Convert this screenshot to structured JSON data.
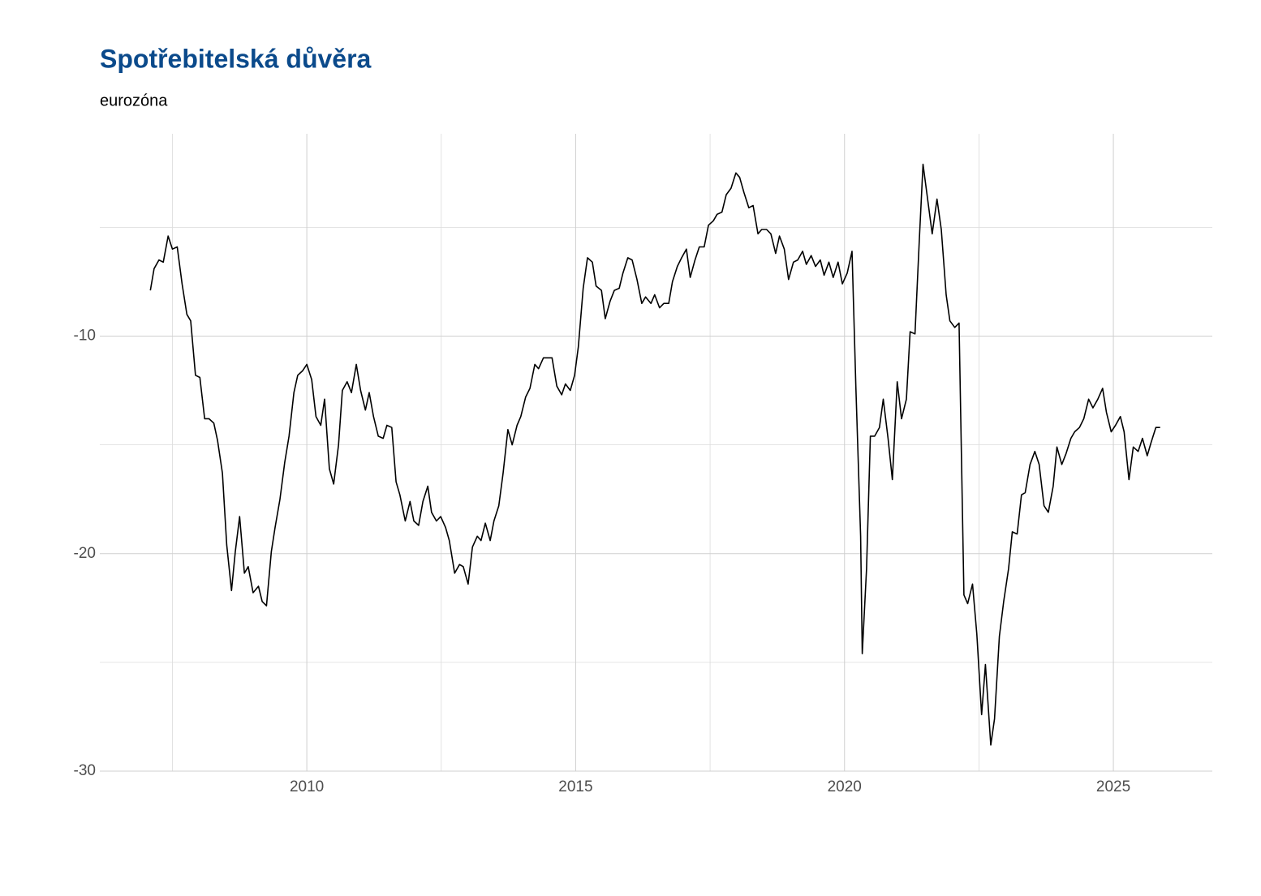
{
  "chart_data": {
    "type": "line",
    "title": "Spotřebitelská důvěra",
    "subtitle": "eurozóna",
    "x": [
      2007.09,
      2007.16,
      2007.25,
      2007.33,
      2007.42,
      2007.5,
      2007.59,
      2007.68,
      2007.77,
      2007.84,
      2007.93,
      2008.01,
      2008.1,
      2008.18,
      2008.27,
      2008.34,
      2008.43,
      2008.51,
      2008.6,
      2008.67,
      2008.75,
      2008.84,
      2008.91,
      2009.0,
      2009.1,
      2009.17,
      2009.25,
      2009.34,
      2009.41,
      2009.5,
      2009.59,
      2009.67,
      2009.76,
      2009.83,
      2009.92,
      2010.0,
      2010.09,
      2010.17,
      2010.26,
      2010.33,
      2010.42,
      2010.5,
      2010.59,
      2010.66,
      2010.75,
      2010.83,
      2010.92,
      2011.0,
      2011.09,
      2011.16,
      2011.24,
      2011.33,
      2011.42,
      2011.49,
      2011.58,
      2011.66,
      2011.73,
      2011.83,
      2011.92,
      2011.99,
      2012.08,
      2012.16,
      2012.25,
      2012.32,
      2012.41,
      2012.49,
      2012.58,
      2012.65,
      2012.75,
      2012.84,
      2012.91,
      2013.0,
      2013.08,
      2013.17,
      2013.24,
      2013.32,
      2013.41,
      2013.48,
      2013.57,
      2013.65,
      2013.74,
      2013.82,
      2013.91,
      2013.98,
      2014.07,
      2014.15,
      2014.24,
      2014.31,
      2014.4,
      2014.48,
      2014.56,
      2014.65,
      2014.74,
      2014.81,
      2014.9,
      2014.98,
      2015.05,
      2015.14,
      2015.22,
      2015.31,
      2015.38,
      2015.48,
      2015.55,
      2015.64,
      2015.72,
      2015.81,
      2015.88,
      2015.97,
      2016.05,
      2016.14,
      2016.23,
      2016.3,
      2016.4,
      2016.47,
      2016.56,
      2016.64,
      2016.73,
      2016.8,
      2016.89,
      2016.97,
      2017.06,
      2017.13,
      2017.22,
      2017.3,
      2017.39,
      2017.47,
      2017.56,
      2017.63,
      2017.72,
      2017.8,
      2017.89,
      2017.98,
      2018.05,
      2018.13,
      2018.22,
      2018.3,
      2018.39,
      2018.46,
      2018.55,
      2018.63,
      2018.72,
      2018.79,
      2018.88,
      2018.96,
      2019.05,
      2019.13,
      2019.22,
      2019.29,
      2019.38,
      2019.46,
      2019.55,
      2019.62,
      2019.71,
      2019.79,
      2019.88,
      2019.96,
      2020.05,
      2020.14,
      2020.21,
      2020.3,
      2020.33,
      2020.41,
      2020.48,
      2020.56,
      2020.65,
      2020.72,
      2020.81,
      2020.89,
      2020.98,
      2021.06,
      2021.15,
      2021.22,
      2021.31,
      2021.39,
      2021.46,
      2021.55,
      2021.63,
      2021.72,
      2021.8,
      2021.89,
      2021.96,
      2022.05,
      2022.13,
      2022.22,
      2022.29,
      2022.38,
      2022.46,
      2022.55,
      2022.62,
      2022.72,
      2022.79,
      2022.88,
      2022.96,
      2023.05,
      2023.12,
      2023.21,
      2023.29,
      2023.36,
      2023.45,
      2023.54,
      2023.62,
      2023.71,
      2023.79,
      2023.88,
      2023.95,
      2024.04,
      2024.12,
      2024.21,
      2024.28,
      2024.37,
      2024.45,
      2024.54,
      2024.62,
      2024.71,
      2024.8,
      2024.87,
      2024.96,
      2025.04,
      2025.13,
      2025.2,
      2025.29,
      2025.37,
      2025.46,
      2025.54,
      2025.63,
      2025.7,
      2025.79,
      2025.87
    ],
    "values": [
      -7.9,
      -6.9,
      -6.5,
      -6.6,
      -5.4,
      -6.0,
      -5.9,
      -7.6,
      -9.0,
      -9.3,
      -11.8,
      -11.9,
      -13.8,
      -13.8,
      -14.0,
      -14.8,
      -16.3,
      -19.6,
      -21.7,
      -19.9,
      -18.3,
      -20.9,
      -20.6,
      -21.8,
      -21.5,
      -22.2,
      -22.4,
      -19.9,
      -18.8,
      -17.5,
      -15.8,
      -14.6,
      -12.6,
      -11.8,
      -11.6,
      -11.3,
      -12.0,
      -13.7,
      -14.1,
      -12.9,
      -16.1,
      -16.8,
      -15.0,
      -12.5,
      -12.1,
      -12.6,
      -11.3,
      -12.5,
      -13.4,
      -12.6,
      -13.7,
      -14.6,
      -14.7,
      -14.1,
      -14.2,
      -16.7,
      -17.3,
      -18.5,
      -17.6,
      -18.5,
      -18.7,
      -17.6,
      -16.9,
      -18.1,
      -18.5,
      -18.3,
      -18.8,
      -19.4,
      -20.9,
      -20.5,
      -20.6,
      -21.4,
      -19.7,
      -19.2,
      -19.4,
      -18.6,
      -19.4,
      -18.5,
      -17.8,
      -16.3,
      -14.3,
      -15.0,
      -14.1,
      -13.7,
      -12.8,
      -12.4,
      -11.3,
      -11.5,
      -11.0,
      -11.0,
      -11.0,
      -12.3,
      -12.7,
      -12.2,
      -12.5,
      -11.8,
      -10.5,
      -7.8,
      -6.4,
      -6.6,
      -7.7,
      -7.9,
      -9.2,
      -8.4,
      -7.9,
      -7.8,
      -7.1,
      -6.4,
      -6.5,
      -7.4,
      -8.5,
      -8.2,
      -8.5,
      -8.1,
      -8.7,
      -8.5,
      -8.5,
      -7.5,
      -6.8,
      -6.4,
      -6.0,
      -7.3,
      -6.5,
      -5.9,
      -5.9,
      -4.9,
      -4.7,
      -4.4,
      -4.3,
      -3.5,
      -3.2,
      -2.5,
      -2.7,
      -3.4,
      -4.1,
      -4.0,
      -5.3,
      -5.1,
      -5.1,
      -5.3,
      -6.2,
      -5.4,
      -6.0,
      -7.4,
      -6.6,
      -6.5,
      -6.1,
      -6.7,
      -6.3,
      -6.8,
      -6.5,
      -7.2,
      -6.6,
      -7.3,
      -6.6,
      -7.6,
      -7.1,
      -6.1,
      -12.3,
      -19.2,
      -24.6,
      -20.7,
      -14.6,
      -14.6,
      -14.2,
      -12.9,
      -14.7,
      -16.6,
      -12.1,
      -13.8,
      -12.9,
      -9.8,
      -9.9,
      -5.6,
      -2.1,
      -3.8,
      -5.3,
      -3.7,
      -5.1,
      -8.1,
      -9.3,
      -9.6,
      -9.4,
      -21.9,
      -22.3,
      -21.4,
      -23.7,
      -27.4,
      -25.1,
      -28.8,
      -27.6,
      -23.8,
      -22.2,
      -20.7,
      -19.0,
      -19.1,
      -17.3,
      -17.2,
      -15.9,
      -15.3,
      -15.9,
      -17.8,
      -18.1,
      -16.9,
      -15.1,
      -15.9,
      -15.4,
      -14.7,
      -14.4,
      -14.2,
      -13.8,
      -12.9,
      -13.3,
      -12.9,
      -12.4,
      -13.5,
      -14.4,
      -14.1,
      -13.7,
      -14.4,
      -16.6,
      -15.1,
      -15.3,
      -14.7,
      -15.5,
      -14.9,
      -14.2,
      -14.2
    ],
    "color": "#000000",
    "xlim": [
      2006.15,
      2026.84
    ],
    "xticks": [
      2010,
      2015,
      2020,
      2025
    ],
    "ylim": [
      -30,
      -0.7
    ],
    "yticks": [
      -30,
      -20,
      -10
    ],
    "grid": true
  }
}
